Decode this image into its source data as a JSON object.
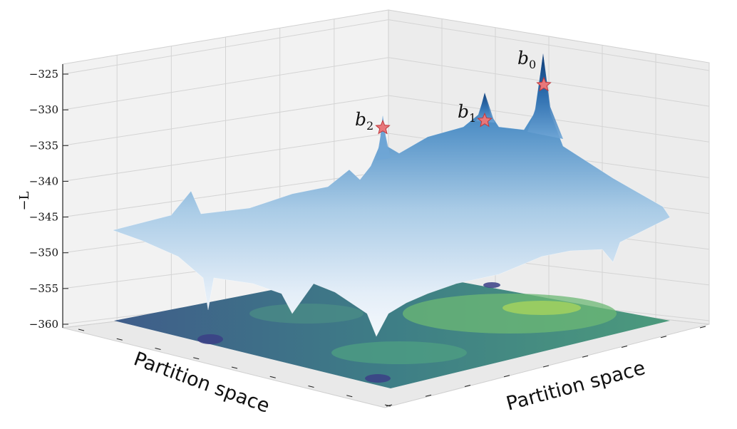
{
  "chart_data": {
    "type": "surface3d",
    "title": "",
    "xlabel": "Partition space",
    "ylabel": "Partition space",
    "zlabel": "−L",
    "zlim": [
      -360,
      -325
    ],
    "z_ticks": [
      "−325",
      "−330",
      "−335",
      "−340",
      "−345",
      "−350",
      "−355",
      "−360"
    ],
    "grid": true,
    "colormap_surface": "Blues",
    "colormap_contour": "viridis",
    "peaks": [
      {
        "name": "b",
        "sub": "0",
        "z": -326.5,
        "marker": "star",
        "color": "#e8777a"
      },
      {
        "name": "b",
        "sub": "1",
        "z": -331.5,
        "marker": "star",
        "color": "#e8777a"
      },
      {
        "name": "b",
        "sub": "2",
        "z": -332.5,
        "marker": "star",
        "color": "#e8777a"
      }
    ]
  }
}
